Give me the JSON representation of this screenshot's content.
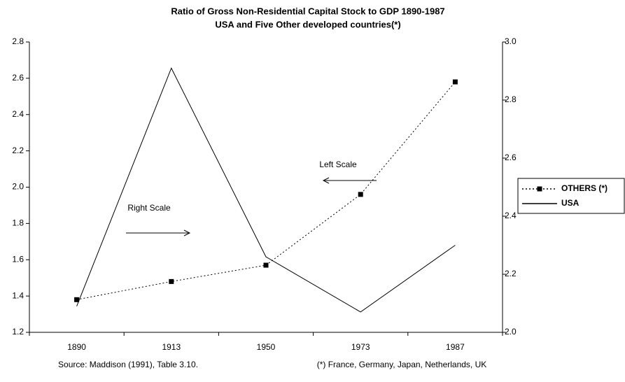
{
  "chart_data": {
    "type": "line",
    "title": "Ratio of Gross Non-Residential Capital Stock to GDP 1890-1987",
    "subtitle": "USA and Five Other developed countries(*)",
    "categories": [
      "1890",
      "1913",
      "1950",
      "1973",
      "1987"
    ],
    "series": [
      {
        "name": "OTHERS (*)",
        "color": "#000000",
        "values": [
          1.38,
          1.48,
          1.57,
          1.96,
          2.58
        ],
        "dash": "dotted",
        "marker": "square"
      },
      {
        "name": "USA",
        "color": "#000000",
        "values": [
          2.09,
          2.91,
          2.26,
          2.07,
          2.3
        ],
        "axis": "y2"
      }
    ],
    "ylim": [
      1.2,
      2.8
    ],
    "yticks": [
      1.2,
      1.4,
      1.6,
      1.8,
      {
        "value": 2.0,
        "label": "2.0"
      },
      2.2,
      2.4,
      2.6,
      2.8
    ],
    "y2lim": [
      2.0,
      3.0
    ],
    "y2ticks": [
      {
        "value": 2.0,
        "label": "2.0"
      },
      2.2,
      2.4,
      2.6,
      2.8,
      {
        "value": 3.0,
        "label": "3.0"
      }
    ],
    "annotations": [
      "Left Scale",
      "Right Scale"
    ],
    "source": "Source: Maddison (1991), Table 3.10.",
    "note": "(*) France, Germany, Japan, Netherlands, UK",
    "grid": false,
    "legend": "right"
  }
}
